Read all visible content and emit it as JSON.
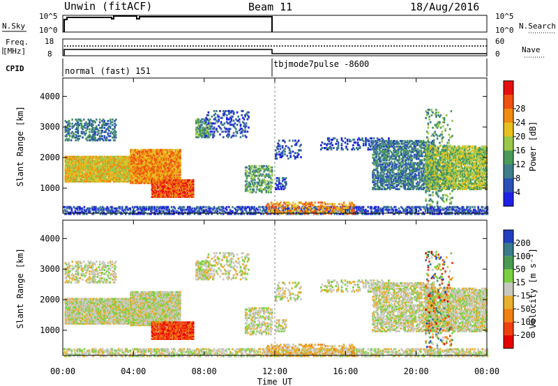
{
  "header": {
    "station": "Unwin (fitACF)",
    "beam": "Beam 11",
    "date": "18/Aug/2016"
  },
  "top_panels": {
    "nsky_label": "N.Sky",
    "nsky_ticks": [
      "10^5",
      "10^0"
    ],
    "nsearch_label": "N.Search",
    "nsearch_ticks": [
      "10^5",
      "10^0"
    ],
    "freq_label_1": "Freq.",
    "freq_label_2": "[MHz]",
    "freq_ticks": [
      "18",
      "8"
    ],
    "nave_label": "Nave",
    "nave_ticks": [
      "60",
      "0"
    ],
    "cpid_label": "CPID",
    "cpid_1": "normal (fast) 151",
    "cpid_2": "tbjmode7pulse -8600"
  },
  "chart_data": [
    {
      "type": "heatmap",
      "name": "power",
      "ylabel": "Slant Range [km]",
      "xlabel": "",
      "x_ticks": [
        "00:00",
        "04:00",
        "08:00",
        "12:00",
        "16:00",
        "20:00",
        "00:00"
      ],
      "x_range_hours": [
        0,
        24
      ],
      "y_ticks": [
        1000,
        2000,
        3000,
        4000
      ],
      "y_range_km": [
        180,
        4600
      ],
      "colorbar_label": "Power [dB]",
      "colorbar_ticks": [
        "4",
        "8",
        "12",
        "16",
        "20",
        "24",
        "28"
      ],
      "colorbar_colors": [
        "#1e20e6",
        "#2a4fb8",
        "#3f7d8a",
        "#4a9a5a",
        "#9ac84a",
        "#e6c020",
        "#f08c10",
        "#f05010",
        "#e61010"
      ]
    },
    {
      "type": "heatmap",
      "name": "velocity",
      "ylabel": "Slant Range [km]",
      "xlabel": "Time UT",
      "x_ticks": [
        "00:00",
        "04:00",
        "08:00",
        "12:00",
        "16:00",
        "20:00",
        "00:00"
      ],
      "x_range_hours": [
        0,
        24
      ],
      "y_ticks": [
        1000,
        2000,
        3000,
        4000
      ],
      "y_range_km": [
        180,
        4600
      ],
      "colorbar_label": "Velocity [m s⁻¹]",
      "colorbar_ticks": [
        "200",
        "100",
        "50",
        "15",
        "-15",
        "-50",
        "-100",
        "-200"
      ],
      "colorbar_colors": [
        "#2040c0",
        "#3a7a8a",
        "#4a9a50",
        "#7ad040",
        "#c8c8c0",
        "#e8b030",
        "#f08010",
        "#f04010",
        "#e60000"
      ]
    }
  ]
}
